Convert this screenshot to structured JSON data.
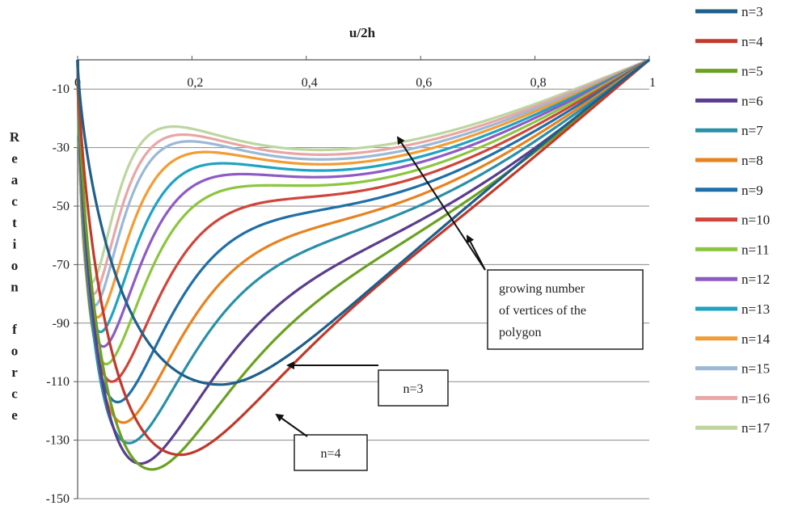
{
  "chart_data": {
    "type": "line",
    "xlabel": "u/2h",
    "ylabel": "Reaction force",
    "xlim": [
      0,
      1
    ],
    "ylim": [
      -150,
      0
    ],
    "x_ticks": [
      "0",
      "0,2",
      "0,4",
      "0,6",
      "0,8",
      "1"
    ],
    "y_ticks": [
      "-10",
      "-30",
      "-50",
      "-70",
      "-90",
      "-110",
      "-130",
      "-150"
    ],
    "grid": "horizontal",
    "legend_position": "right",
    "series": [
      {
        "name": "n=3",
        "color": "#1f5f8b",
        "x_min": 0.25,
        "y_min": -111
      },
      {
        "name": "n=4",
        "color": "#c0392b",
        "x_min": 0.18,
        "y_min": -135
      },
      {
        "name": "n=5",
        "color": "#6aa121",
        "x_min": 0.13,
        "y_min": -140
      },
      {
        "name": "n=6",
        "color": "#5b3d8f",
        "x_min": 0.11,
        "y_min": -138
      },
      {
        "name": "n=7",
        "color": "#2a8fa8",
        "x_min": 0.09,
        "y_min": -131
      },
      {
        "name": "n=8",
        "color": "#e8821e",
        "x_min": 0.08,
        "y_min": -124
      },
      {
        "name": "n=9",
        "color": "#1f6fa8",
        "x_min": 0.07,
        "y_min": -117
      },
      {
        "name": "n=10",
        "color": "#d0453a",
        "x_min": 0.06,
        "y_min": -110
      },
      {
        "name": "n=11",
        "color": "#8cc63f",
        "x_min": 0.05,
        "y_min": -104
      },
      {
        "name": "n=12",
        "color": "#8e5bc4",
        "x_min": 0.045,
        "y_min": -98
      },
      {
        "name": "n=13",
        "color": "#1ea3c2",
        "x_min": 0.04,
        "y_min": -93
      },
      {
        "name": "n=14",
        "color": "#f39c33",
        "x_min": 0.035,
        "y_min": -88
      },
      {
        "name": "n=15",
        "color": "#9bb8d6",
        "x_min": 0.03,
        "y_min": -84
      },
      {
        "name": "n=16",
        "color": "#e8a6a6",
        "x_min": 0.028,
        "y_min": -80
      },
      {
        "name": "n=17",
        "color": "#bcd6a0",
        "x_min": 0.025,
        "y_min": -76
      }
    ],
    "annotations": [
      {
        "text": "growing number of vertices of the polygon",
        "lines": [
          "growing number",
          "of vertices of the",
          "polygon"
        ]
      },
      {
        "text": "n=3"
      },
      {
        "text": "n=4"
      }
    ]
  }
}
